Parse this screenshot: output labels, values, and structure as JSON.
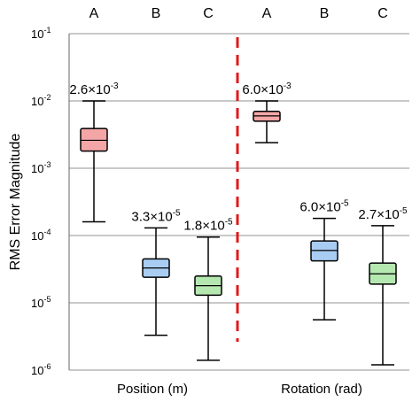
{
  "chart_data": {
    "type": "box",
    "ylabel": "RMS Error Magnitude",
    "yscale": "log",
    "ylim": [
      1e-06,
      0.1
    ],
    "y_ticks": [
      {
        "value": 1e-06,
        "base": "10",
        "exp": "-6"
      },
      {
        "value": 1e-05,
        "base": "10",
        "exp": "-5"
      },
      {
        "value": 0.0001,
        "base": "10",
        "exp": "-4"
      },
      {
        "value": 0.001,
        "base": "10",
        "exp": "-3"
      },
      {
        "value": 0.01,
        "base": "10",
        "exp": "-2"
      },
      {
        "value": 0.1,
        "base": "10",
        "exp": "-1"
      }
    ],
    "grid": true,
    "groups": [
      {
        "label": "Position (m)"
      },
      {
        "label": "Rotation (rad)"
      }
    ],
    "boxes": [
      {
        "group": 0,
        "category": "A",
        "color": "#f4a6a6",
        "whisker_low": 0.00016,
        "q1": 0.0018,
        "median": 0.0026,
        "q3": 0.0039,
        "whisker_high": 0.01,
        "annotation": {
          "mantissa": "2.6×10",
          "exp": "-3"
        }
      },
      {
        "group": 0,
        "category": "B",
        "color": "#a9cdf2",
        "whisker_low": 3.3e-06,
        "q1": 2.4e-05,
        "median": 3.3e-05,
        "q3": 4.5e-05,
        "whisker_high": 0.00013,
        "annotation": {
          "mantissa": "3.3×10",
          "exp": "-5"
        }
      },
      {
        "group": 0,
        "category": "C",
        "color": "#b5e8b0",
        "whisker_low": 1.4e-06,
        "q1": 1.3e-05,
        "median": 1.8e-05,
        "q3": 2.5e-05,
        "whisker_high": 9.5e-05,
        "annotation": {
          "mantissa": "1.8×10",
          "exp": "-5"
        }
      },
      {
        "group": 1,
        "category": "A",
        "color": "#f4a6a6",
        "whisker_low": 0.0024,
        "q1": 0.005,
        "median": 0.006,
        "q3": 0.007,
        "whisker_high": 0.01,
        "annotation": {
          "mantissa": "6.0×10",
          "exp": "-3"
        }
      },
      {
        "group": 1,
        "category": "B",
        "color": "#a9cdf2",
        "whisker_low": 5.6e-06,
        "q1": 4.2e-05,
        "median": 6e-05,
        "q3": 8.3e-05,
        "whisker_high": 0.00018,
        "annotation": {
          "mantissa": "6.0×10",
          "exp": "-5"
        }
      },
      {
        "group": 1,
        "category": "C",
        "color": "#b5e8b0",
        "whisker_low": 1.2e-06,
        "q1": 1.9e-05,
        "median": 2.7e-05,
        "q3": 3.9e-05,
        "whisker_high": 0.00014,
        "annotation": {
          "mantissa": "2.7×10",
          "exp": "-5"
        }
      }
    ],
    "separator_color": "#e0191b",
    "grid_color": "#b7b7b7",
    "median_color": "#e05a5a"
  }
}
